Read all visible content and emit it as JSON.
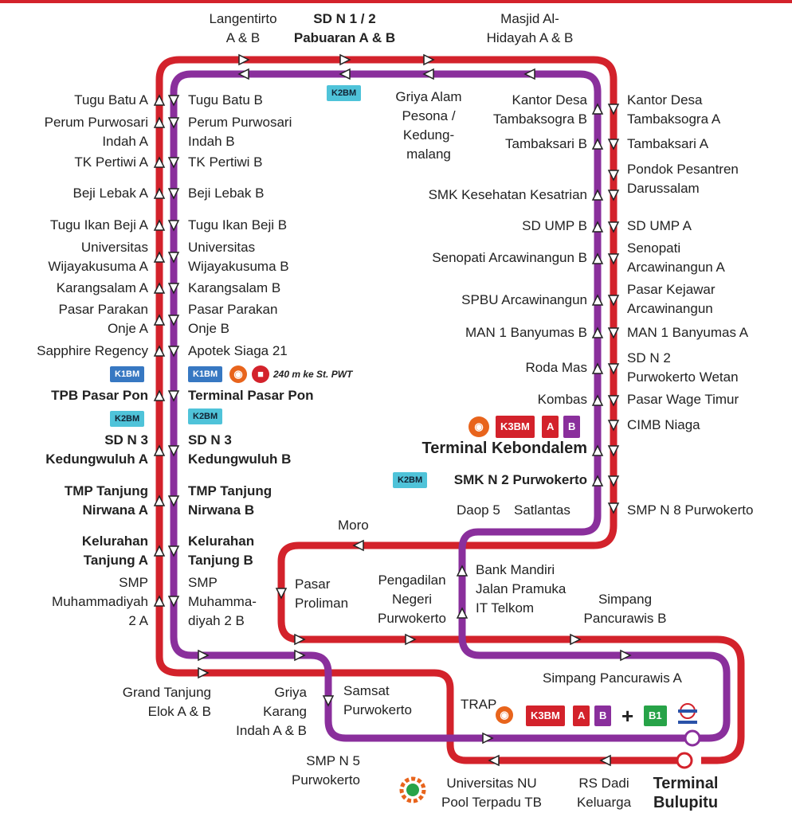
{
  "colors": {
    "red_line": "#d3222b",
    "purple_line": "#8a2f9c",
    "k1bm": "#3778c2",
    "k2bm": "#4fc3d9",
    "b1": "#27a348",
    "bus_icon": "#e8641c"
  },
  "icons": {
    "bus": "bus-icon",
    "train": "train-icon",
    "terminal": "terminal-icon",
    "plus": "plus-icon"
  },
  "top": {
    "langentirto": [
      "Langentirto",
      "A & B"
    ],
    "sdn12": [
      "SD N 1 / 2",
      "Pabuaran A & B"
    ],
    "masjid": [
      "Masjid Al-",
      "Hidayah A & B"
    ],
    "griya_alam": [
      "Griya Alam",
      "Pesona /",
      "Kedung-",
      "malang"
    ]
  },
  "left_a": [
    [
      "Tugu Batu A"
    ],
    [
      "Perum Purwosari",
      "Indah A"
    ],
    [
      "TK Pertiwi A"
    ],
    [
      "Beji Lebak A"
    ],
    [
      "Tugu Ikan Beji A"
    ],
    [
      "Universitas",
      "Wijayakusuma A"
    ],
    [
      "Karangsalam A"
    ],
    [
      "Pasar Parakan",
      "Onje A"
    ],
    [
      "Sapphire Regency"
    ],
    [
      "TPB Pasar Pon"
    ],
    [
      "SD N 3",
      "Kedungwuluh A"
    ],
    [
      "TMP Tanjung",
      "Nirwana A"
    ],
    [
      "Kelurahan",
      "Tanjung A"
    ],
    [
      "SMP",
      "Muhammadiyah",
      "2 A"
    ]
  ],
  "left_b": [
    [
      "Tugu Batu B"
    ],
    [
      "Perum Purwosari",
      "Indah B"
    ],
    [
      "TK Pertiwi B"
    ],
    [
      "Beji Lebak B"
    ],
    [
      "Tugu Ikan Beji B"
    ],
    [
      "Universitas",
      "Wijayakusuma B"
    ],
    [
      "Karangsalam B"
    ],
    [
      "Pasar Parakan",
      "Onje B"
    ],
    [
      "Apotek Siaga 21"
    ],
    [
      "Terminal Pasar Pon"
    ],
    [
      "SD N 3",
      "Kedungwuluh B"
    ],
    [
      "TMP Tanjung",
      "Nirwana B"
    ],
    [
      "Kelurahan",
      "Tanjung B"
    ],
    [
      "SMP",
      "Muhamma-",
      "diyah 2 B"
    ]
  ],
  "right_b": [
    [
      "Kantor Desa",
      "Tambaksogra B"
    ],
    [
      "Tambaksari B"
    ],
    [
      "SMK Kesehatan Kesatrian"
    ],
    [
      "SD UMP B"
    ],
    [
      "Senopati Arcawinangun B"
    ],
    [
      "SPBU Arcawinangun"
    ],
    [
      "MAN 1 Banyumas B"
    ],
    [
      "Roda Mas"
    ],
    [
      "Kombas"
    ],
    [
      "Terminal Kebondalem"
    ],
    [
      "SMK N 2 Purwokerto"
    ],
    [
      "Daop 5"
    ],
    [
      "Satlantas"
    ]
  ],
  "right_a": [
    [
      "Kantor Desa",
      "Tambaksogra A"
    ],
    [
      "Tambaksari A"
    ],
    [
      "Pondok Pesantren",
      "Darussalam"
    ],
    [
      "SD UMP A"
    ],
    [
      "Senopati",
      "Arcawinangun A"
    ],
    [
      "Pasar Kejawar",
      "Arcawinangun"
    ],
    [
      "MAN 1 Banyumas A"
    ],
    [
      "SD N 2",
      "Purwokerto Wetan"
    ],
    [
      "Pasar Wage Timur"
    ],
    [
      "CIMB Niaga"
    ],
    [
      "SMP N 8 Purwokerto"
    ]
  ],
  "middle": {
    "moro": "Moro",
    "pasar_proliman": [
      "Pasar",
      "Proliman"
    ],
    "pengadilan": [
      "Pengadilan",
      "Negeri",
      "Purwokerto"
    ],
    "bank": [
      "Bank Mandiri",
      "Jalan Pramuka",
      "IT Telkom"
    ],
    "simpang_b": [
      "Simpang",
      "Pancurawis B"
    ],
    "simpang_a": "Simpang Pancurawis A",
    "grand": [
      "Grand Tanjung",
      "Elok A & B"
    ],
    "griya_karang": [
      "Griya",
      "Karang",
      "Indah A & B"
    ],
    "samsat": [
      "Samsat",
      "Purwokerto"
    ],
    "trap": "TRAP",
    "smpn5": [
      "SMP N 5",
      "Purwokerto"
    ],
    "unu": [
      "Universitas NU",
      "Pool Terpadu TB"
    ],
    "rs": [
      "RS Dadi",
      "Keluarga"
    ],
    "bulupitu": [
      "Terminal",
      "Bulupitu"
    ]
  },
  "badges": {
    "k1bm": "K1BM",
    "k2bm": "K2BM",
    "k3bm": "K3BM",
    "a": "A",
    "b": "B",
    "b1": "B1",
    "plus": "+"
  },
  "note_walk": "240 m ke St. PWT"
}
